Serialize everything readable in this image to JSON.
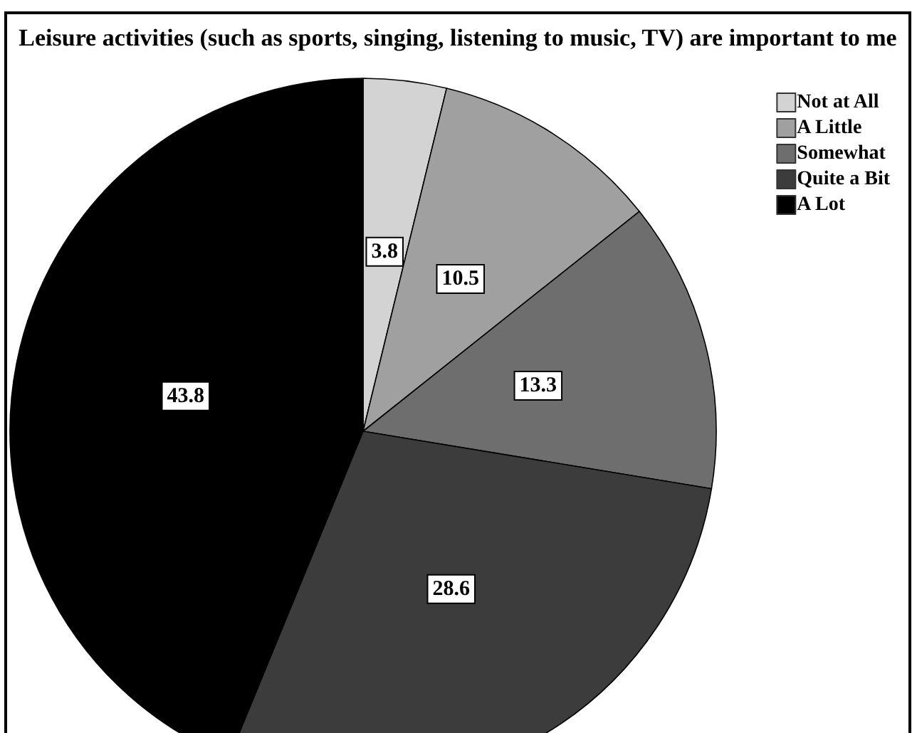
{
  "chart_data": {
    "type": "pie",
    "title": "Leisure activities (such as sports, singing, listening to music, TV) are important to me",
    "categories": [
      "Not at All",
      "A Little",
      "Somewhat",
      "Quite a Bit",
      "A Lot"
    ],
    "values": [
      3.8,
      10.5,
      13.3,
      28.6,
      43.8
    ],
    "colors": [
      "#d3d3d3",
      "#a0a0a0",
      "#6e6e6e",
      "#3c3c3c",
      "#000000"
    ],
    "data_labels": true,
    "legend": "top right"
  }
}
